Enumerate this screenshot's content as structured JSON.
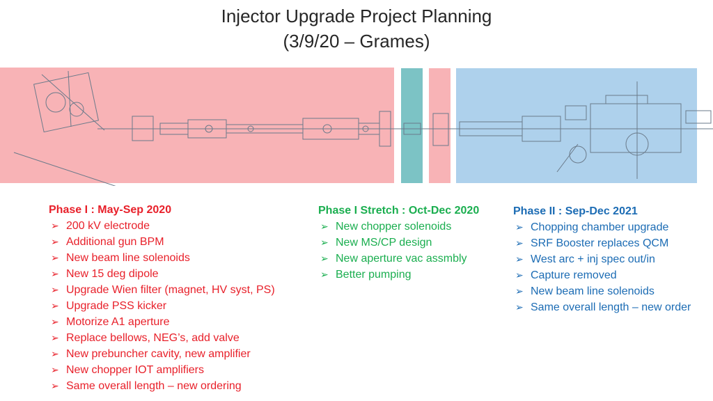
{
  "title": {
    "line1": "Injector Upgrade Project Planning",
    "line2": "(3/9/20 – Grames)"
  },
  "colors": {
    "phase1": "#e8202a",
    "stretch": "#1aae4f",
    "phase2": "#1c6cb4",
    "band_red": "#f8b3b6",
    "band_teal": "#7cc3c5",
    "band_blue": "#aed1ec"
  },
  "phase1": {
    "heading": "Phase I : May-Sep 2020",
    "items": [
      "200 kV electrode",
      "Additional gun BPM",
      "New beam line solenoids",
      "New 15 deg dipole",
      "Upgrade Wien filter (magnet, HV syst, PS)",
      "Upgrade PSS kicker",
      "Motorize A1 aperture",
      "Replace bellows, NEG’s, add valve",
      "New prebuncher cavity, new amplifier",
      "New chopper IOT amplifiers",
      "Same overall length – new ordering"
    ]
  },
  "stretch": {
    "heading": "Phase I Stretch : Oct-Dec 2020",
    "items": [
      "New chopper solenoids",
      "New MS/CP design",
      "New aperture vac assmbly",
      "Better pumping"
    ]
  },
  "phase2": {
    "heading": "Phase II : Sep-Dec 2021",
    "items": [
      "Chopping chamber upgrade",
      "SRF Booster replaces QCM",
      "West arc + inj spec out/in",
      "Capture removed",
      "New beam line solenoids",
      "Same overall length – new order"
    ]
  },
  "bullet_icon": "arrow-bullet-icon"
}
